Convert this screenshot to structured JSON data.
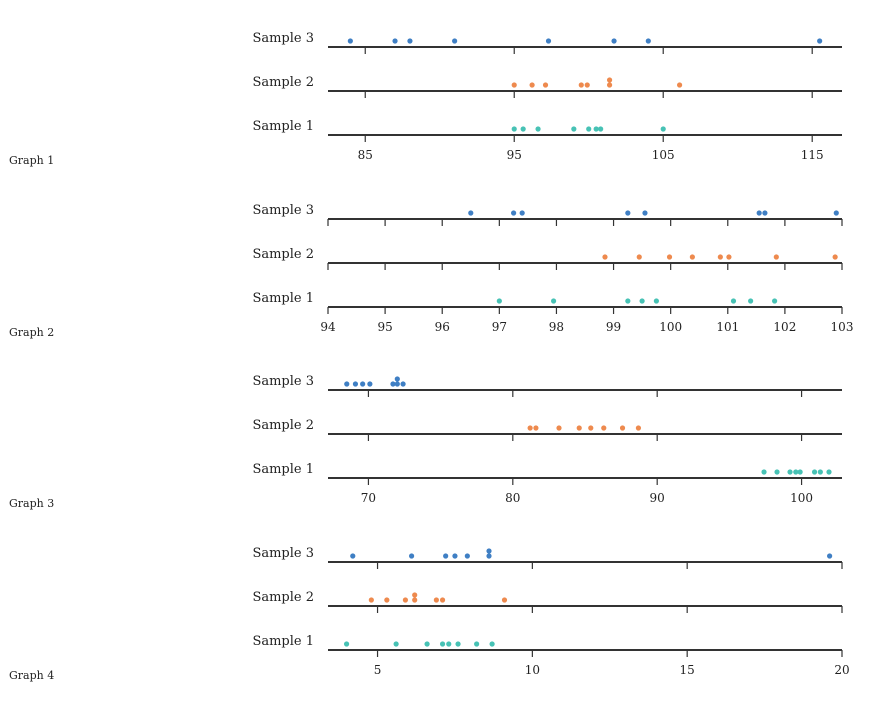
{
  "colors": {
    "sample_3": "#3f7fc4",
    "sample_2": "#ee8a4e",
    "sample_1": "#47c2b5",
    "axis": "#333333"
  },
  "chart_data": [
    {
      "type": "dot-plot",
      "label": "Graph 1",
      "xlim": [
        82.5,
        117
      ],
      "ticks": [
        85,
        95,
        105,
        115
      ],
      "series": [
        {
          "name": "Sample 3",
          "values": [
            84,
            87,
            88,
            91,
            97.3,
            101.7,
            104,
            115.5
          ]
        },
        {
          "name": "Sample 2",
          "values": [
            95,
            96.2,
            97.1,
            99.5,
            99.9,
            101.4,
            101.4,
            106.1
          ]
        },
        {
          "name": "Sample 1",
          "values": [
            95,
            95.6,
            96.6,
            99,
            100,
            100.5,
            100.8,
            105
          ]
        }
      ]
    },
    {
      "type": "dot-plot",
      "label": "Graph 2",
      "xlim": [
        94,
        103
      ],
      "ticks": [
        94,
        95,
        96,
        97,
        98,
        99,
        100,
        101,
        102,
        103
      ],
      "series": [
        {
          "name": "Sample 3",
          "values": [
            96.5,
            97.25,
            97.4,
            99.25,
            99.55,
            101.55,
            101.65,
            102.9
          ]
        },
        {
          "name": "Sample 2",
          "values": [
            98.85,
            99.45,
            99.98,
            100.38,
            100.87,
            101.02,
            101.85,
            102.88
          ]
        },
        {
          "name": "Sample 1",
          "values": [
            97,
            97.95,
            99.25,
            99.5,
            99.75,
            101.1,
            101.4,
            101.82
          ]
        }
      ]
    },
    {
      "type": "dot-plot",
      "label": "Graph 3",
      "xlim": [
        67.2,
        102.8
      ],
      "ticks": [
        70,
        80,
        90,
        100
      ],
      "series": [
        {
          "name": "Sample 3",
          "values": [
            68.5,
            69.1,
            69.6,
            70.1,
            71.7,
            72,
            72,
            72.4
          ]
        },
        {
          "name": "Sample 2",
          "values": [
            81.2,
            81.6,
            83.2,
            84.6,
            85.4,
            86.3,
            87.6,
            88.7
          ]
        },
        {
          "name": "Sample 1",
          "values": [
            97.4,
            98.3,
            99.2,
            99.6,
            99.9,
            100.9,
            101.3,
            101.9
          ]
        }
      ]
    },
    {
      "type": "dot-plot",
      "label": "Graph 4",
      "xlim": [
        3.4,
        20
      ],
      "ticks": [
        5,
        10,
        15,
        20
      ],
      "series": [
        {
          "name": "Sample 3",
          "values": [
            4.2,
            6.1,
            7.2,
            7.5,
            7.9,
            8.6,
            8.6,
            19.6
          ]
        },
        {
          "name": "Sample 2",
          "values": [
            4.8,
            5.3,
            5.9,
            6.2,
            6.2,
            6.9,
            7.1,
            9.1
          ]
        },
        {
          "name": "Sample 1",
          "values": [
            4,
            5.6,
            6.6,
            7.1,
            7.3,
            7.6,
            8.2,
            8.7
          ]
        }
      ]
    }
  ]
}
